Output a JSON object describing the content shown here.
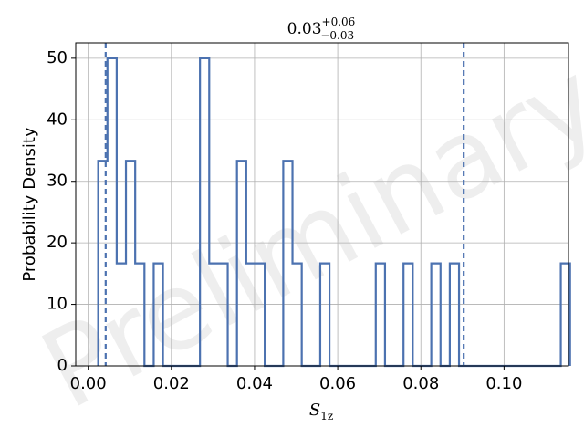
{
  "chart_data": {
    "type": "histogram",
    "title": {
      "value": "0.03",
      "sup": "+0.06",
      "sub": "−0.03"
    },
    "xlabel": {
      "base": "S",
      "sub": "1z"
    },
    "ylabel": "Probability Density",
    "watermark": "Preliminary",
    "xlim": [
      -0.003,
      0.1155
    ],
    "ylim": [
      0,
      52.5
    ],
    "xticks": [
      0.0,
      0.02,
      0.04,
      0.06,
      0.08,
      0.1
    ],
    "xtick_labels": [
      "0.00",
      "0.02",
      "0.04",
      "0.06",
      "0.08",
      "0.10"
    ],
    "yticks": [
      0,
      10,
      20,
      30,
      40,
      50
    ],
    "ytick_labels": [
      "0",
      "10",
      "20",
      "30",
      "40",
      "50"
    ],
    "grid": true,
    "bin_width": 0.002225,
    "bin_edges_start": 0.0024,
    "bin_values": [
      33.33,
      50,
      16.67,
      33.33,
      16.67,
      0,
      16.67,
      0,
      0,
      0,
      0,
      50,
      16.67,
      16.67,
      0,
      33.33,
      16.67,
      16.67,
      0,
      0,
      33.33,
      16.67,
      0,
      0,
      16.67,
      0,
      0,
      0,
      0,
      0,
      16.67,
      0,
      0,
      16.67,
      0,
      0,
      16.67,
      0,
      16.67,
      0,
      0,
      0,
      0,
      0,
      0,
      0,
      0,
      0,
      0,
      0,
      16.67
    ],
    "vlines": [
      0.0042,
      0.0903
    ],
    "color": "#4c72b0"
  }
}
